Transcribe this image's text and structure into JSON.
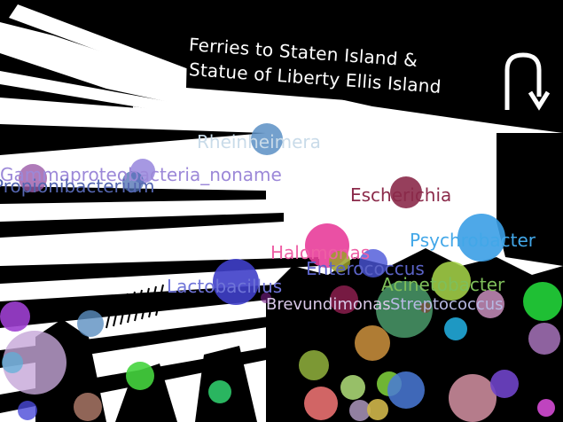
{
  "sign": {
    "line1": "Ferries to Staten Island &",
    "line2": "Statue of Liberty Ellis Island",
    "icon": "u-turn-arrow-icon"
  },
  "labels": [
    {
      "text": "Rheinheimera",
      "color": "#c9dbe9"
    },
    {
      "text": "Gammaproteobacteria_noname",
      "color": "#9c88d8"
    },
    {
      "text": "Propionibacterium",
      "color": "#5566b0"
    },
    {
      "text": "Escherichia",
      "color": "#8b2a4a"
    },
    {
      "text": "Psychrobacter",
      "color": "#42a7e8"
    },
    {
      "text": "Halomonas",
      "color": "#ee5fa5"
    },
    {
      "text": "Enterococcus",
      "color": "#5b63c7"
    },
    {
      "text": "Lactobacillus",
      "color": "#6f74d8"
    },
    {
      "text": "Acinetobacter",
      "color": "#7fbf5a"
    },
    {
      "text": "Brevundimonas",
      "color": "#d9c8e8"
    },
    {
      "text": "Streptococcus",
      "color": "#b7b9e3"
    }
  ],
  "bubbles": [
    {
      "color": "#5a8fc4",
      "alpha": 0.85
    },
    {
      "color": "#9b5aa8",
      "alpha": 0.8
    },
    {
      "color": "#8876d8",
      "alpha": 0.75
    },
    {
      "color": "#4a6cb0",
      "alpha": 0.75
    },
    {
      "color": "#8b2a4a",
      "alpha": 0.9
    },
    {
      "color": "#3b9fe6",
      "alpha": 0.9
    },
    {
      "color": "#e83d9a",
      "alpha": 0.9
    },
    {
      "color": "#4a55d8",
      "alpha": 0.8
    },
    {
      "color": "#3f3fc9",
      "alpha": 0.9
    },
    {
      "color": "#a9d84a",
      "alpha": 0.85
    },
    {
      "color": "#8b1f4d",
      "alpha": 0.85
    },
    {
      "color": "#4a9a6a",
      "alpha": 0.85
    },
    {
      "color": "#d497c8",
      "alpha": 0.8
    },
    {
      "color": "#22d43a",
      "alpha": 0.9
    },
    {
      "color": "#b17bc7",
      "alpha": 0.8
    },
    {
      "color": "#9d3fd0",
      "alpha": 0.9
    },
    {
      "color": "#c5a6d8",
      "alpha": 0.8
    },
    {
      "color": "#5b8fc0",
      "alpha": 0.8
    },
    {
      "color": "#5bb0d8",
      "alpha": 0.7
    },
    {
      "color": "#45d43e",
      "alpha": 0.9
    },
    {
      "color": "#2fc96a",
      "alpha": 0.9
    },
    {
      "color": "#c28a3a",
      "alpha": 0.9
    },
    {
      "color": "#21a8d8",
      "alpha": 0.9
    },
    {
      "color": "#8aa83a",
      "alpha": 0.9
    },
    {
      "color": "#e87070",
      "alpha": 0.9
    },
    {
      "color": "#b2e07a",
      "alpha": 0.85
    },
    {
      "color": "#7bc93a",
      "alpha": 0.9
    },
    {
      "color": "#4a7ad8",
      "alpha": 0.85
    },
    {
      "color": "#c98a9a",
      "alpha": 0.9
    },
    {
      "color": "#6f44c9",
      "alpha": 0.9
    },
    {
      "color": "#a07060",
      "alpha": 0.9
    },
    {
      "color": "#4a4ad8",
      "alpha": 0.8
    },
    {
      "color": "#b6a0c8",
      "alpha": 0.8
    },
    {
      "color": "#cfb64a",
      "alpha": 0.9
    },
    {
      "color": "#e050e0",
      "alpha": 0.85
    },
    {
      "color": "#9aa02a",
      "alpha": 0.85
    },
    {
      "color": "#7a1f8a",
      "alpha": 0.6
    },
    {
      "color": "#8b3a2a",
      "alpha": 0.6
    }
  ]
}
